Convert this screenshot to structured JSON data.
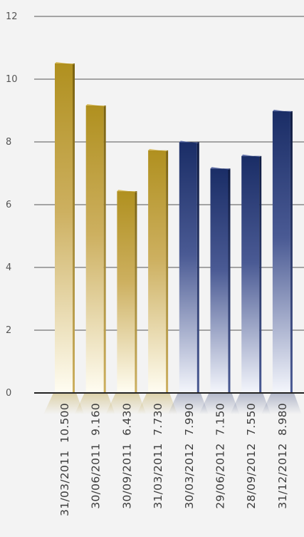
{
  "chart_data": {
    "type": "bar",
    "ylim": [
      0,
      12
    ],
    "yticks": [
      "0",
      "2",
      "4",
      "6",
      "8",
      "10",
      "12"
    ],
    "grid": true,
    "categories": [
      "31/03/2011  10.500",
      "30/06/2011  9.160",
      "30/09/2011  6.430",
      "31/03/2011  7.730",
      "30/03/2012  7.990",
      "29/06/2012  7.150",
      "28/09/2012  7.550",
      "31/12/2012  8.980"
    ],
    "values": [
      10.5,
      9.16,
      6.43,
      7.73,
      7.99,
      7.15,
      7.55,
      8.98
    ],
    "bar_groups": [
      "gold",
      "gold",
      "gold",
      "gold",
      "navy",
      "navy",
      "navy",
      "navy"
    ],
    "colors": {
      "gold": "#b0901f",
      "gold_side": "#7a6210",
      "gold_light": "#fffdf2",
      "navy": "#1a2d66",
      "navy_side": "#0e1a40",
      "navy_light": "#f4f6fc",
      "grid": "#555555",
      "axis": "#222222"
    }
  }
}
